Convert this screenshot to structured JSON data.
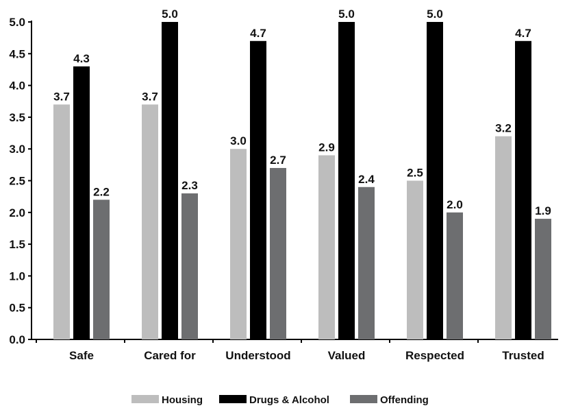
{
  "chart_data": {
    "type": "bar",
    "title": "",
    "xlabel": "",
    "ylabel": "",
    "ylim": [
      0,
      5
    ],
    "yticks": [
      "0.0",
      "0.5",
      "1.0",
      "1.5",
      "2.0",
      "2.5",
      "3.0",
      "3.5",
      "4.0",
      "4.5",
      "5.0"
    ],
    "categories": [
      "Safe",
      "Cared for",
      "Understood",
      "Valued",
      "Respected",
      "Trusted"
    ],
    "series": [
      {
        "name": "Housing",
        "color": "#bdbdbd",
        "values": [
          3.7,
          3.7,
          3.0,
          2.9,
          2.5,
          3.2
        ],
        "labels": [
          "3.7",
          "3.7",
          "3.0",
          "2.9",
          "2.5",
          "3.2"
        ]
      },
      {
        "name": "Drugs & Alcohol",
        "color": "#000000",
        "values": [
          4.3,
          5.0,
          4.7,
          5.0,
          5.0,
          4.7
        ],
        "labels": [
          "4.3",
          "5.0",
          "4.7",
          "5.0",
          "5.0",
          "4.7"
        ]
      },
      {
        "name": "Offending",
        "color": "#6d6e70",
        "values": [
          2.2,
          2.3,
          2.7,
          2.4,
          2.0,
          1.9
        ],
        "labels": [
          "2.2",
          "2.3",
          "2.7",
          "2.4",
          "2.0",
          "1.9"
        ]
      }
    ],
    "grid": false,
    "legend": "bottom"
  }
}
